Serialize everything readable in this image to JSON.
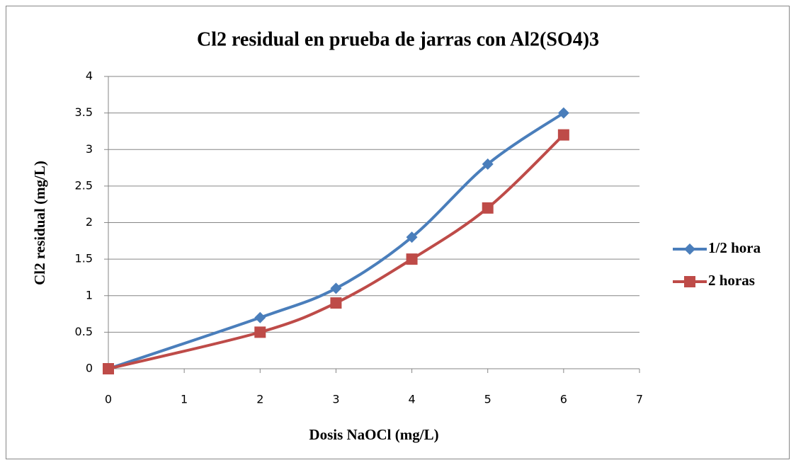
{
  "chart_data": {
    "type": "line",
    "title": "Cl2 residual en prueba de jarras con Al2(SO4)3",
    "x_label": "Dosis NaOCl (mg/L)",
    "y_label": "Cl2 residual (mg/L)",
    "x": [
      0,
      2,
      3,
      4,
      5,
      6
    ],
    "series": [
      {
        "name": "1/2 hora",
        "color": "#4a7ebb",
        "marker": "diamond",
        "values": [
          0,
          0.7,
          1.1,
          1.8,
          2.8,
          3.5
        ]
      },
      {
        "name": "2 horas",
        "color": "#be4b48",
        "marker": "square",
        "values": [
          0,
          0.5,
          0.9,
          1.5,
          2.2,
          3.2
        ]
      }
    ],
    "xlim": [
      0,
      7
    ],
    "xticks": [
      0,
      1,
      2,
      3,
      4,
      5,
      6,
      7
    ],
    "ylim": [
      0,
      4
    ],
    "yticks": [
      0,
      0.5,
      1,
      1.5,
      2,
      2.5,
      3,
      3.5,
      4
    ],
    "grid": true,
    "smooth": true,
    "legend": "right"
  }
}
